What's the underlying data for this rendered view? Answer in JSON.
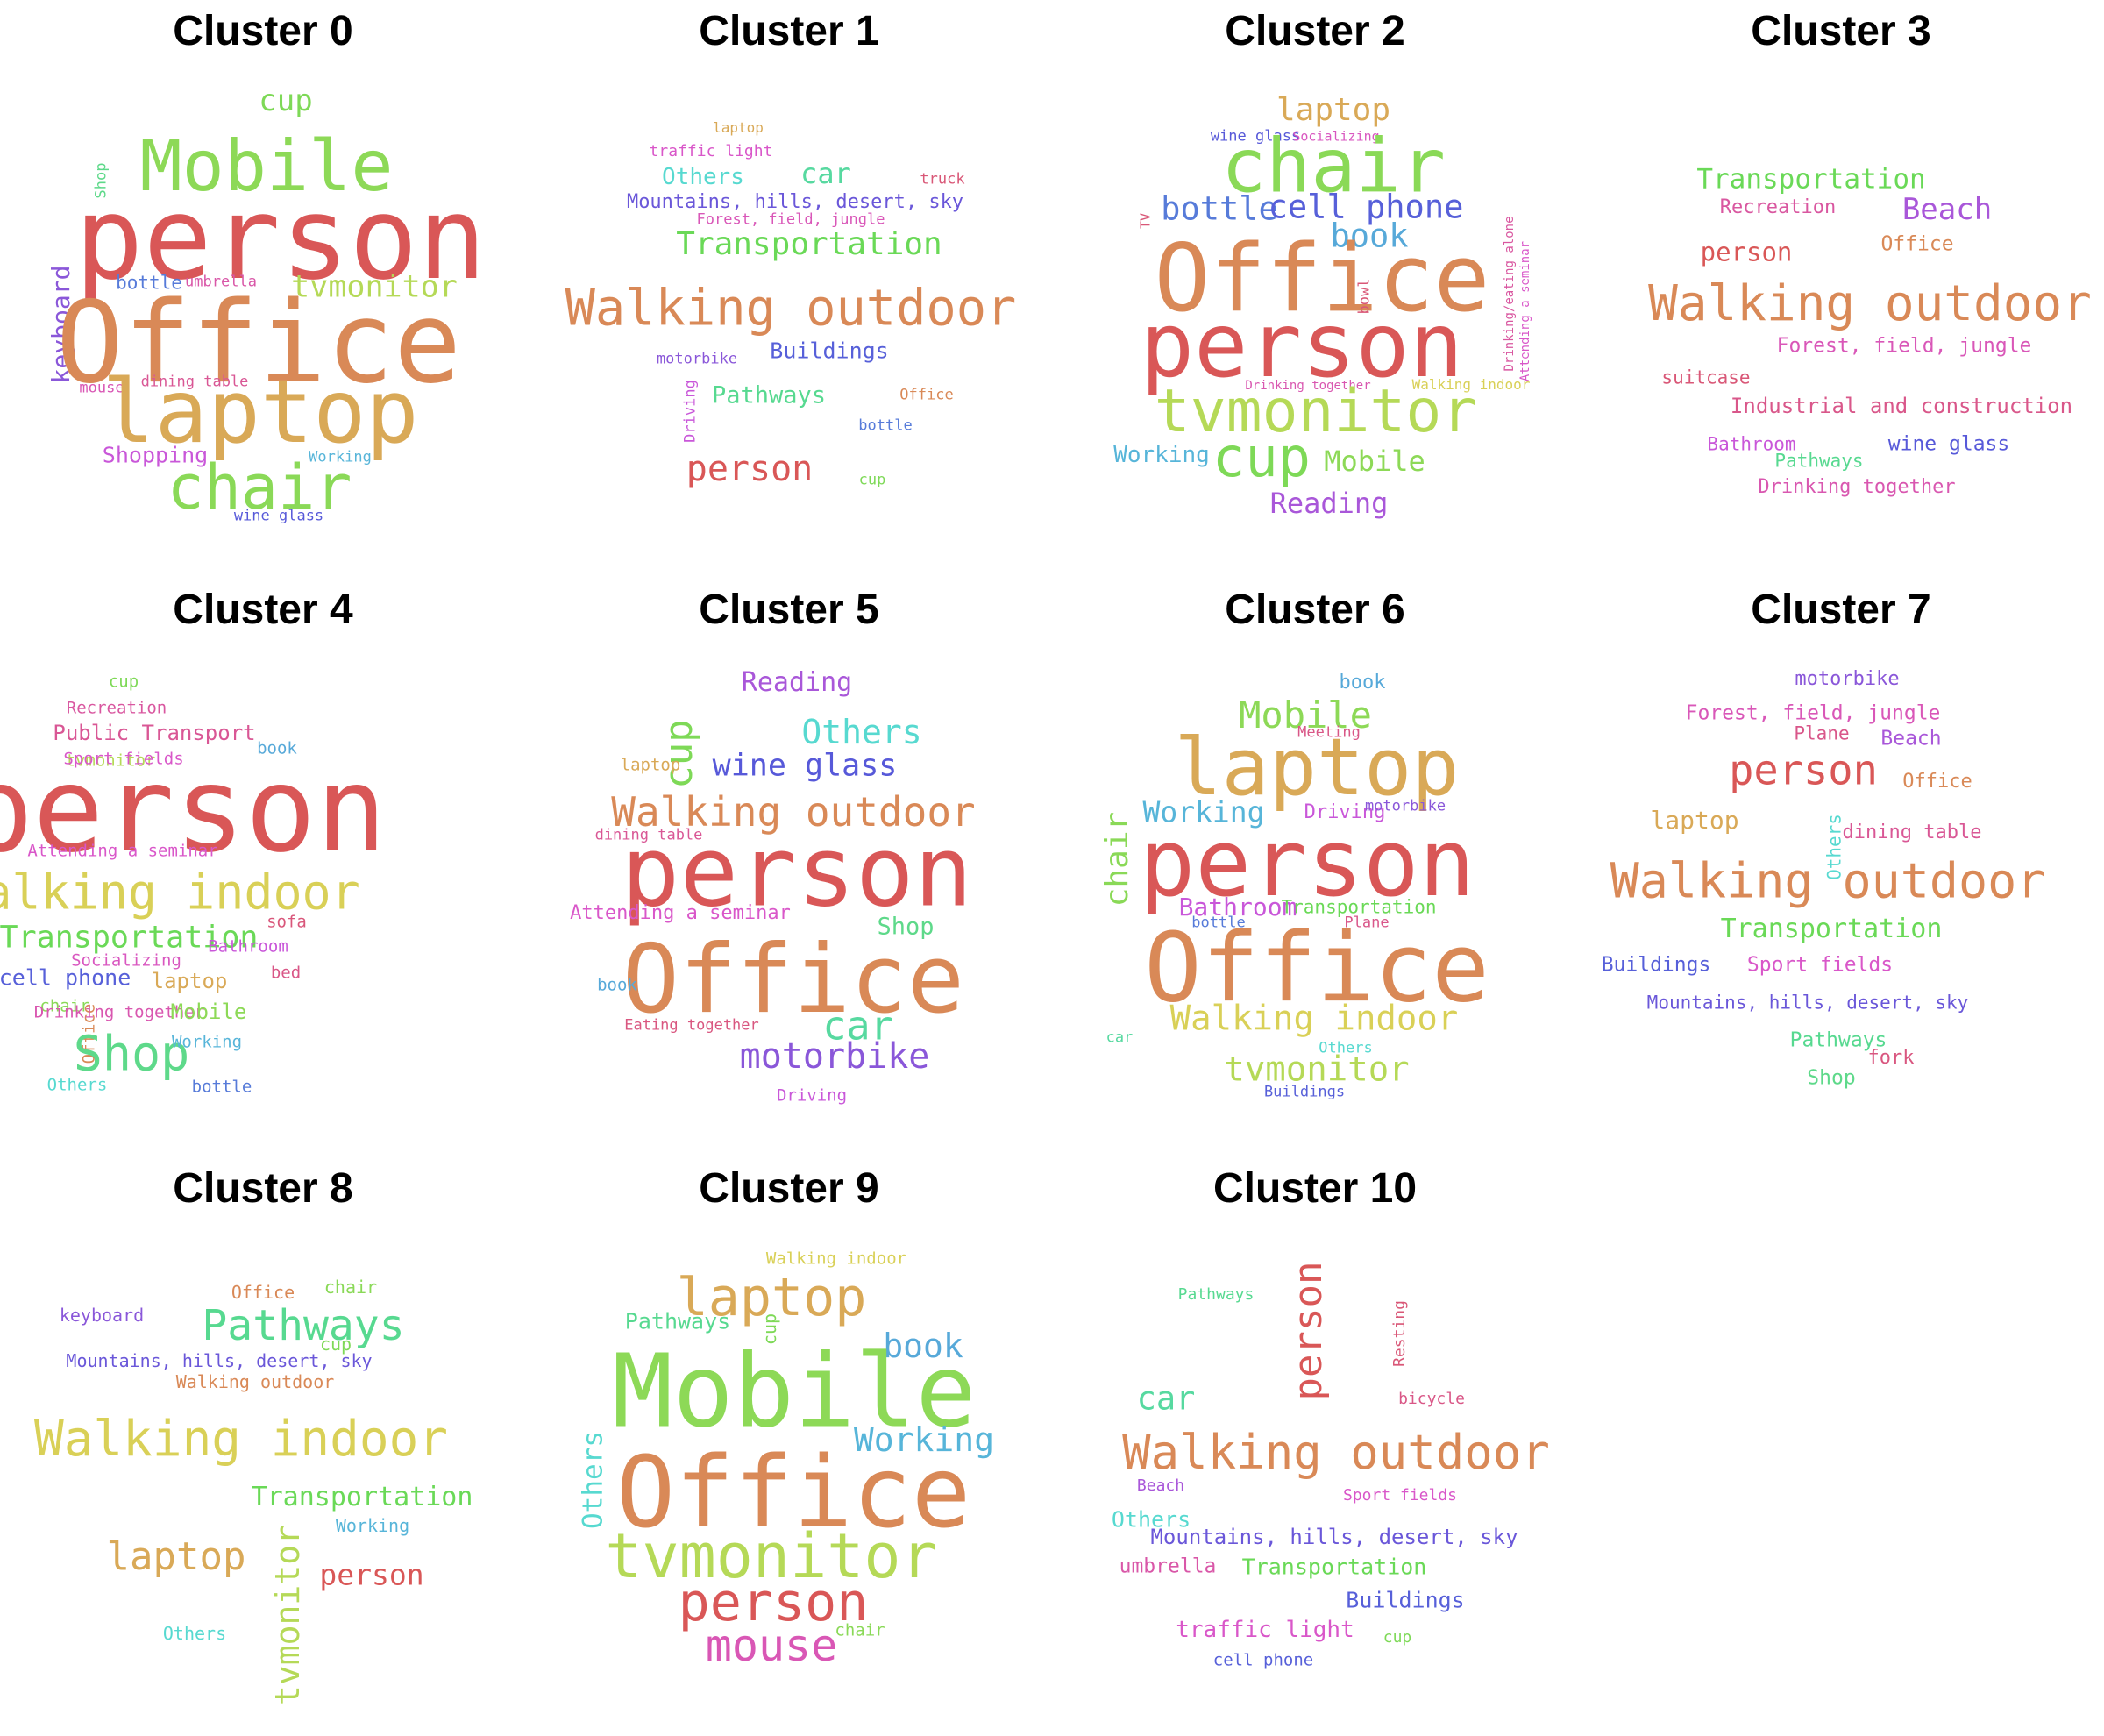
{
  "clusters": [
    {
      "title": "Cluster 0",
      "words": [
        {
          "text": "cup",
          "color": "#7ed957"
        },
        {
          "text": "Mobile",
          "color": "#8dd957"
        },
        {
          "text": "Shop",
          "color": "#5ed98a"
        },
        {
          "text": "person",
          "color": "#d95757"
        },
        {
          "text": "keyboard",
          "color": "#8a57d9"
        },
        {
          "text": "bottle",
          "color": "#577bd9"
        },
        {
          "text": "umbrella",
          "color": "#d957a8"
        },
        {
          "text": "tvmonitor",
          "color": "#b5d957"
        },
        {
          "text": "Office",
          "color": "#d98957"
        },
        {
          "text": "mouse",
          "color": "#d957b5"
        },
        {
          "text": "dining table",
          "color": "#d95795"
        },
        {
          "text": "laptop",
          "color": "#d9a957"
        },
        {
          "text": "Shopping",
          "color": "#c957d9"
        },
        {
          "text": "Working",
          "color": "#57b5d9"
        },
        {
          "text": "chair",
          "color": "#8ad957"
        },
        {
          "text": "wine glass",
          "color": "#5759d9"
        }
      ]
    },
    {
      "title": "Cluster 1",
      "words": [
        {
          "text": "laptop",
          "color": "#d9a957"
        },
        {
          "text": "traffic light",
          "color": "#d957c9"
        },
        {
          "text": "Others",
          "color": "#57d9d0"
        },
        {
          "text": "car",
          "color": "#57d9a0"
        },
        {
          "text": "truck",
          "color": "#d95777"
        },
        {
          "text": "Mountains, hills, desert, sky",
          "color": "#6a57d9"
        },
        {
          "text": "Forest, field, jungle",
          "color": "#d957b8"
        },
        {
          "text": "Transportation",
          "color": "#6ad957"
        },
        {
          "text": "Walking outdoor",
          "color": "#d98957"
        },
        {
          "text": "Buildings",
          "color": "#5760d9"
        },
        {
          "text": "motorbike",
          "color": "#8a57d9"
        },
        {
          "text": "Driving",
          "color": "#c957d9"
        },
        {
          "text": "Pathways",
          "color": "#57d990"
        },
        {
          "text": "Office",
          "color": "#d98957"
        },
        {
          "text": "bottle",
          "color": "#577bd9"
        },
        {
          "text": "person",
          "color": "#d95757"
        },
        {
          "text": "cup",
          "color": "#7ed957"
        }
      ]
    },
    {
      "title": "Cluster 2",
      "words": [
        {
          "text": "laptop",
          "color": "#d9a957"
        },
        {
          "text": "wine glass",
          "color": "#5759d9"
        },
        {
          "text": "Socializing",
          "color": "#d957c0"
        },
        {
          "text": "chair",
          "color": "#8ad957"
        },
        {
          "text": "TV",
          "color": "#d95777"
        },
        {
          "text": "bottle",
          "color": "#577bd9"
        },
        {
          "text": "cell phone",
          "color": "#5760d9"
        },
        {
          "text": "book",
          "color": "#57a9d9"
        },
        {
          "text": "Office",
          "color": "#d98957"
        },
        {
          "text": "bowl",
          "color": "#d95777"
        },
        {
          "text": "Drinking/eating alone",
          "color": "#d957a0"
        },
        {
          "text": "Attending a seminar",
          "color": "#d957c9"
        },
        {
          "text": "person",
          "color": "#d95757"
        },
        {
          "text": "Drinking together",
          "color": "#d957b0"
        },
        {
          "text": "Walking indoor",
          "color": "#d9d057"
        },
        {
          "text": "tvmonitor",
          "color": "#b5d957"
        },
        {
          "text": "Working",
          "color": "#57b5d9"
        },
        {
          "text": "cup",
          "color": "#7ed957"
        },
        {
          "text": "Mobile",
          "color": "#8dd957"
        },
        {
          "text": "Reading",
          "color": "#a957d9"
        }
      ]
    },
    {
      "title": "Cluster 3",
      "words": [
        {
          "text": "Transportation",
          "color": "#6ad957"
        },
        {
          "text": "Recreation",
          "color": "#d957a0"
        },
        {
          "text": "Beach",
          "color": "#a957d9"
        },
        {
          "text": "person",
          "color": "#d95757"
        },
        {
          "text": "Office",
          "color": "#d98957"
        },
        {
          "text": "Walking outdoor",
          "color": "#d98957"
        },
        {
          "text": "Forest, field, jungle",
          "color": "#d957b8"
        },
        {
          "text": "suitcase",
          "color": "#d95777"
        },
        {
          "text": "Industrial and construction",
          "color": "#d9578a"
        },
        {
          "text": "Bathroom",
          "color": "#c957d9"
        },
        {
          "text": "wine glass",
          "color": "#5759d9"
        },
        {
          "text": "Pathways",
          "color": "#57d990"
        },
        {
          "text": "Drinking together",
          "color": "#d957b0"
        }
      ]
    },
    {
      "title": "Cluster 4",
      "words": [
        {
          "text": "cup",
          "color": "#7ed957"
        },
        {
          "text": "Recreation",
          "color": "#d957a0"
        },
        {
          "text": "Public Transport",
          "color": "#d95795"
        },
        {
          "text": "book",
          "color": "#57a9d9"
        },
        {
          "text": "tvmonitor",
          "color": "#b5d957"
        },
        {
          "text": "Sport fields",
          "color": "#d957c9"
        },
        {
          "text": "person",
          "color": "#d95757"
        },
        {
          "text": "Attending a seminar",
          "color": "#d957c9"
        },
        {
          "text": "Walking indoor",
          "color": "#d9d057"
        },
        {
          "text": "Transportation",
          "color": "#6ad957"
        },
        {
          "text": "sofa",
          "color": "#d9577b"
        },
        {
          "text": "Bathroom",
          "color": "#c957d9"
        },
        {
          "text": "Socializing",
          "color": "#d957c0"
        },
        {
          "text": "cell phone",
          "color": "#5760d9"
        },
        {
          "text": "laptop",
          "color": "#d9a957"
        },
        {
          "text": "bed",
          "color": "#d95787"
        },
        {
          "text": "chair",
          "color": "#8ad957"
        },
        {
          "text": "Office",
          "color": "#d98957"
        },
        {
          "text": "Drinking together",
          "color": "#d957b0"
        },
        {
          "text": "Mobile",
          "color": "#8dd957"
        },
        {
          "text": "Shop",
          "color": "#5ed98a"
        },
        {
          "text": "Working",
          "color": "#57b5d9"
        },
        {
          "text": "Others",
          "color": "#57d9d0"
        },
        {
          "text": "bottle",
          "color": "#577bd9"
        }
      ]
    },
    {
      "title": "Cluster 5",
      "words": [
        {
          "text": "Reading",
          "color": "#a957d9"
        },
        {
          "text": "cup",
          "color": "#7ed957"
        },
        {
          "text": "Others",
          "color": "#57d9d0"
        },
        {
          "text": "laptop",
          "color": "#d9a957"
        },
        {
          "text": "wine glass",
          "color": "#5759d9"
        },
        {
          "text": "Walking outdoor",
          "color": "#d98957"
        },
        {
          "text": "dining table",
          "color": "#d95795"
        },
        {
          "text": "person",
          "color": "#d95757"
        },
        {
          "text": "Attending a seminar",
          "color": "#d957c9"
        },
        {
          "text": "Shop",
          "color": "#5ed98a"
        },
        {
          "text": "Office",
          "color": "#d98957"
        },
        {
          "text": "book",
          "color": "#57a9d9"
        },
        {
          "text": "car",
          "color": "#57d9a0"
        },
        {
          "text": "Eating together",
          "color": "#d95780"
        },
        {
          "text": "motorbike",
          "color": "#8a57d9"
        },
        {
          "text": "Driving",
          "color": "#c957d9"
        }
      ]
    },
    {
      "title": "Cluster 6",
      "words": [
        {
          "text": "book",
          "color": "#57a9d9"
        },
        {
          "text": "Mobile",
          "color": "#8dd957"
        },
        {
          "text": "Meeting",
          "color": "#d95787"
        },
        {
          "text": "laptop",
          "color": "#d9a957"
        },
        {
          "text": "Working",
          "color": "#57b5d9"
        },
        {
          "text": "Driving",
          "color": "#c957d9"
        },
        {
          "text": "motorbike",
          "color": "#8a57d9"
        },
        {
          "text": "chair",
          "color": "#8ad957"
        },
        {
          "text": "person",
          "color": "#d95757"
        },
        {
          "text": "Bathroom",
          "color": "#c957d9"
        },
        {
          "text": "Transportation",
          "color": "#6ad957"
        },
        {
          "text": "bottle",
          "color": "#577bd9"
        },
        {
          "text": "Plane",
          "color": "#d9578a"
        },
        {
          "text": "Office",
          "color": "#d98957"
        },
        {
          "text": "Walking indoor",
          "color": "#d9d057"
        },
        {
          "text": "car",
          "color": "#57d9a0"
        },
        {
          "text": "Others",
          "color": "#57d9d0"
        },
        {
          "text": "tvmonitor",
          "color": "#b5d957"
        },
        {
          "text": "Buildings",
          "color": "#5760d9"
        }
      ]
    },
    {
      "title": "Cluster 7",
      "words": [
        {
          "text": "motorbike",
          "color": "#8a57d9"
        },
        {
          "text": "Forest, field, jungle",
          "color": "#d957b8"
        },
        {
          "text": "Plane",
          "color": "#d9578a"
        },
        {
          "text": "Beach",
          "color": "#a957d9"
        },
        {
          "text": "person",
          "color": "#d95757"
        },
        {
          "text": "Office",
          "color": "#d98957"
        },
        {
          "text": "laptop",
          "color": "#d9a957"
        },
        {
          "text": "Others",
          "color": "#57d9d0"
        },
        {
          "text": "dining table",
          "color": "#d95795"
        },
        {
          "text": "Walking outdoor",
          "color": "#d98957"
        },
        {
          "text": "Transportation",
          "color": "#6ad957"
        },
        {
          "text": "Buildings",
          "color": "#5760d9"
        },
        {
          "text": "Sport fields",
          "color": "#d957c9"
        },
        {
          "text": "Mountains, hills, desert, sky",
          "color": "#6a57d9"
        },
        {
          "text": "Pathways",
          "color": "#57d990"
        },
        {
          "text": "fork",
          "color": "#d95780"
        },
        {
          "text": "Shop",
          "color": "#5ed98a"
        }
      ]
    },
    {
      "title": "Cluster 8",
      "words": [
        {
          "text": "Office",
          "color": "#d98957"
        },
        {
          "text": "chair",
          "color": "#8ad957"
        },
        {
          "text": "keyboard",
          "color": "#8a57d9"
        },
        {
          "text": "Pathways",
          "color": "#57d990"
        },
        {
          "text": "cup",
          "color": "#7ed957"
        },
        {
          "text": "Mountains, hills, desert, sky",
          "color": "#6a57d9"
        },
        {
          "text": "Walking outdoor",
          "color": "#d98957"
        },
        {
          "text": "Walking indoor",
          "color": "#d9d057"
        },
        {
          "text": "Transportation",
          "color": "#6ad957"
        },
        {
          "text": "Working",
          "color": "#57b5d9"
        },
        {
          "text": "laptop",
          "color": "#d9a957"
        },
        {
          "text": "tvmonitor",
          "color": "#b5d957"
        },
        {
          "text": "person",
          "color": "#d95757"
        },
        {
          "text": "Others",
          "color": "#57d9d0"
        }
      ]
    },
    {
      "title": "Cluster 9",
      "words": [
        {
          "text": "Walking indoor",
          "color": "#d9d057"
        },
        {
          "text": "laptop",
          "color": "#d9a957"
        },
        {
          "text": "Pathways",
          "color": "#57d990"
        },
        {
          "text": "cup",
          "color": "#7ed957"
        },
        {
          "text": "book",
          "color": "#57a9d9"
        },
        {
          "text": "Mobile",
          "color": "#8dd957"
        },
        {
          "text": "Working",
          "color": "#57b5d9"
        },
        {
          "text": "Others",
          "color": "#57d9d0"
        },
        {
          "text": "Office",
          "color": "#d98957"
        },
        {
          "text": "tvmonitor",
          "color": "#b5d957"
        },
        {
          "text": "person",
          "color": "#d95757"
        },
        {
          "text": "chair",
          "color": "#8ad957"
        },
        {
          "text": "mouse",
          "color": "#d957b5"
        }
      ]
    },
    {
      "title": "Cluster 10",
      "words": [
        {
          "text": "Pathways",
          "color": "#57d990"
        },
        {
          "text": "person",
          "color": "#d95757"
        },
        {
          "text": "Resting",
          "color": "#d95777"
        },
        {
          "text": "car",
          "color": "#57d9a0"
        },
        {
          "text": "bicycle",
          "color": "#d95787"
        },
        {
          "text": "Walking outdoor",
          "color": "#d98957"
        },
        {
          "text": "Beach",
          "color": "#a957d9"
        },
        {
          "text": "Sport fields",
          "color": "#d957c9"
        },
        {
          "text": "Others",
          "color": "#57d9d0"
        },
        {
          "text": "Mountains, hills, desert, sky",
          "color": "#6a57d9"
        },
        {
          "text": "umbrella",
          "color": "#d957a8"
        },
        {
          "text": "Transportation",
          "color": "#6ad957"
        },
        {
          "text": "Buildings",
          "color": "#5760d9"
        },
        {
          "text": "traffic light",
          "color": "#d957c9"
        },
        {
          "text": "cup",
          "color": "#7ed957"
        },
        {
          "text": "cell phone",
          "color": "#5760d9"
        }
      ]
    }
  ]
}
